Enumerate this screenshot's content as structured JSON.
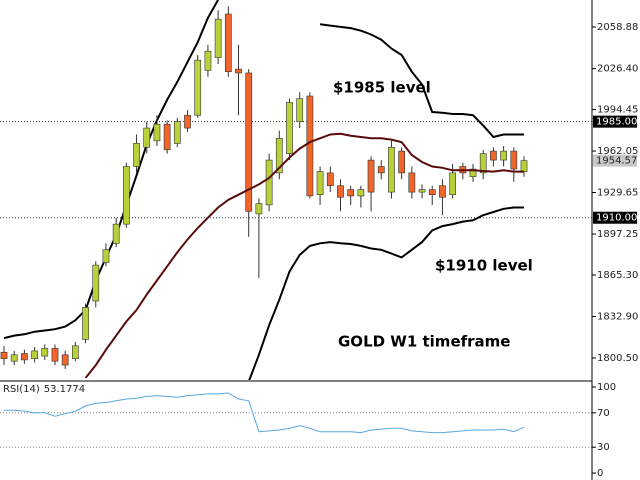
{
  "chart_data": {
    "type": "candlestick",
    "open": [
      1805,
      1798,
      1804,
      1800,
      1802,
      1808,
      1803,
      1800,
      1815,
      1845,
      1875,
      1890,
      1905,
      1950,
      1965,
      1970,
      1983,
      1968,
      1990,
      1990,
      2025,
      2035,
      2069,
      2026,
      2023,
      1913,
      1920,
      1945,
      1960,
      1985,
      2005,
      1928,
      1945,
      1935,
      1932,
      1927,
      1955,
      1950,
      1930,
      1962,
      1945,
      1930,
      1932,
      1935,
      1928,
      1950,
      1942,
      1945,
      1962,
      1955,
      1962,
      1946
    ],
    "high": [
      1810,
      1806,
      1807,
      1809,
      1811,
      1811,
      1806,
      1813,
      1843,
      1876,
      1890,
      1910,
      1953,
      1975,
      1985,
      1990,
      1986,
      1988,
      1994,
      2037,
      2045,
      2072,
      2075,
      2045,
      2026,
      1925,
      1960,
      1978,
      2003,
      2008,
      2008,
      1950,
      1950,
      1940,
      1935,
      1935,
      1958,
      1955,
      1970,
      1965,
      1950,
      1936,
      1935,
      1940,
      1952,
      1953,
      1952,
      1963,
      1965,
      1966,
      1965,
      1958
    ],
    "low": [
      1795,
      1795,
      1796,
      1797,
      1799,
      1795,
      1792,
      1798,
      1812,
      1840,
      1872,
      1887,
      1902,
      1945,
      1960,
      1966,
      1960,
      1965,
      1977,
      1988,
      2020,
      2030,
      2020,
      1990,
      1895,
      1863,
      1915,
      1940,
      1955,
      1980,
      1925,
      1920,
      1930,
      1915,
      1920,
      1918,
      1915,
      1940,
      1925,
      1940,
      1925,
      1925,
      1920,
      1912,
      1925,
      1940,
      1938,
      1940,
      1950,
      1950,
      1938,
      1942
    ],
    "close": [
      1800,
      1803,
      1799,
      1806,
      1808,
      1798,
      1795,
      1810,
      1840,
      1873,
      1885,
      1905,
      1950,
      1968,
      1980,
      1983,
      1963,
      1985,
      1980,
      2033,
      2040,
      2065,
      2024,
      2023,
      1915,
      1921,
      1955,
      1972,
      2000,
      2003,
      1927,
      1946,
      1935,
      1926,
      1927,
      1932,
      1930,
      1945,
      1965,
      1945,
      1930,
      1932,
      1928,
      1926,
      1945,
      1945,
      1948,
      1960,
      1955,
      1962,
      1948,
      1954.57
    ],
    "up_color": "#b9d03a",
    "down_color": "#f0652a",
    "bands": {
      "upper": [
        1816,
        1818,
        1819,
        1821,
        1822,
        1823,
        1825,
        1830,
        1838,
        1861,
        1879,
        1896.5,
        1920,
        1943,
        1967,
        1986,
        2002,
        2016,
        2031.5,
        2047,
        2066,
        2080,
        null,
        null,
        null,
        null,
        null,
        null,
        null,
        null,
        null,
        2061,
        2060,
        2059,
        2058,
        2056,
        2053,
        2049,
        2042,
        2037,
        2024,
        2014,
        1992.5,
        1992,
        1991,
        1991,
        1990,
        1982,
        1973,
        1975,
        1975,
        1975
      ],
      "middle": [
        null,
        null,
        null,
        null,
        null,
        null,
        null,
        null,
        1785,
        1795,
        1807,
        1818,
        1829,
        1838,
        1850,
        1861,
        1872,
        1883,
        1893,
        1902,
        1910,
        1918,
        1924,
        1928,
        1932,
        1936,
        1941,
        1949,
        1957,
        1964,
        1969,
        1972,
        1975,
        1975.5,
        1974,
        1973,
        1972,
        1972,
        1971,
        1969,
        1959,
        1953.5,
        1950,
        1949,
        1947,
        1947,
        1947,
        1946.5,
        1946,
        1947,
        1946,
        1946
      ],
      "lower": [
        null,
        null,
        null,
        null,
        null,
        null,
        null,
        null,
        null,
        null,
        null,
        null,
        null,
        null,
        null,
        null,
        null,
        null,
        null,
        null,
        null,
        null,
        null,
        null,
        1782,
        1803,
        1826,
        1846,
        1868,
        1881,
        1888,
        1890,
        1891,
        1890,
        1889.5,
        1888,
        1886,
        1885,
        1882,
        1879,
        1885,
        1891,
        1900,
        1903.5,
        1905,
        1907,
        1908,
        1912,
        1914.5,
        1917,
        1918,
        1918
      ],
      "band_color": "#000000",
      "middle_color": "#5a0a0a"
    },
    "ylim": [
      1783.33,
      2079.96
    ],
    "yticks": [
      2058.88,
      {
        "value": 2026.4,
        "label": "2026.40"
      },
      1994.45,
      1962.05,
      1929.65,
      1897.25,
      {
        "value": 1865.3,
        "label": "1865.30"
      },
      {
        "value": 1832.9,
        "label": "1832.90"
      },
      {
        "value": 1800.5,
        "label": "1800.50"
      }
    ],
    "levels": [
      {
        "value": 1985,
        "label": "1985.00"
      },
      {
        "value": 1910,
        "label": "1910.00"
      }
    ],
    "annotations": [
      "$1985 level",
      "$1910 level",
      "GOLD W1 timeframe"
    ],
    "rsi": {
      "name": "RSI(14)",
      "values": [
        73,
        73,
        72,
        70,
        70,
        66,
        69,
        72,
        78,
        81,
        82,
        84,
        86,
        87,
        89,
        90,
        89,
        88,
        90,
        91,
        92,
        92,
        93,
        86,
        84,
        48,
        49,
        50,
        52,
        55,
        52,
        48,
        48,
        48,
        48,
        47,
        50,
        51,
        52,
        52,
        49,
        48,
        47,
        47,
        48,
        49,
        50,
        50,
        50,
        51,
        48,
        53.1774
      ],
      "color": "#5aa6dc",
      "ylim": [
        -8.1,
        105.8
      ],
      "yticks": [
        100,
        70,
        30,
        0
      ],
      "dotted": [
        70,
        30
      ]
    }
  }
}
